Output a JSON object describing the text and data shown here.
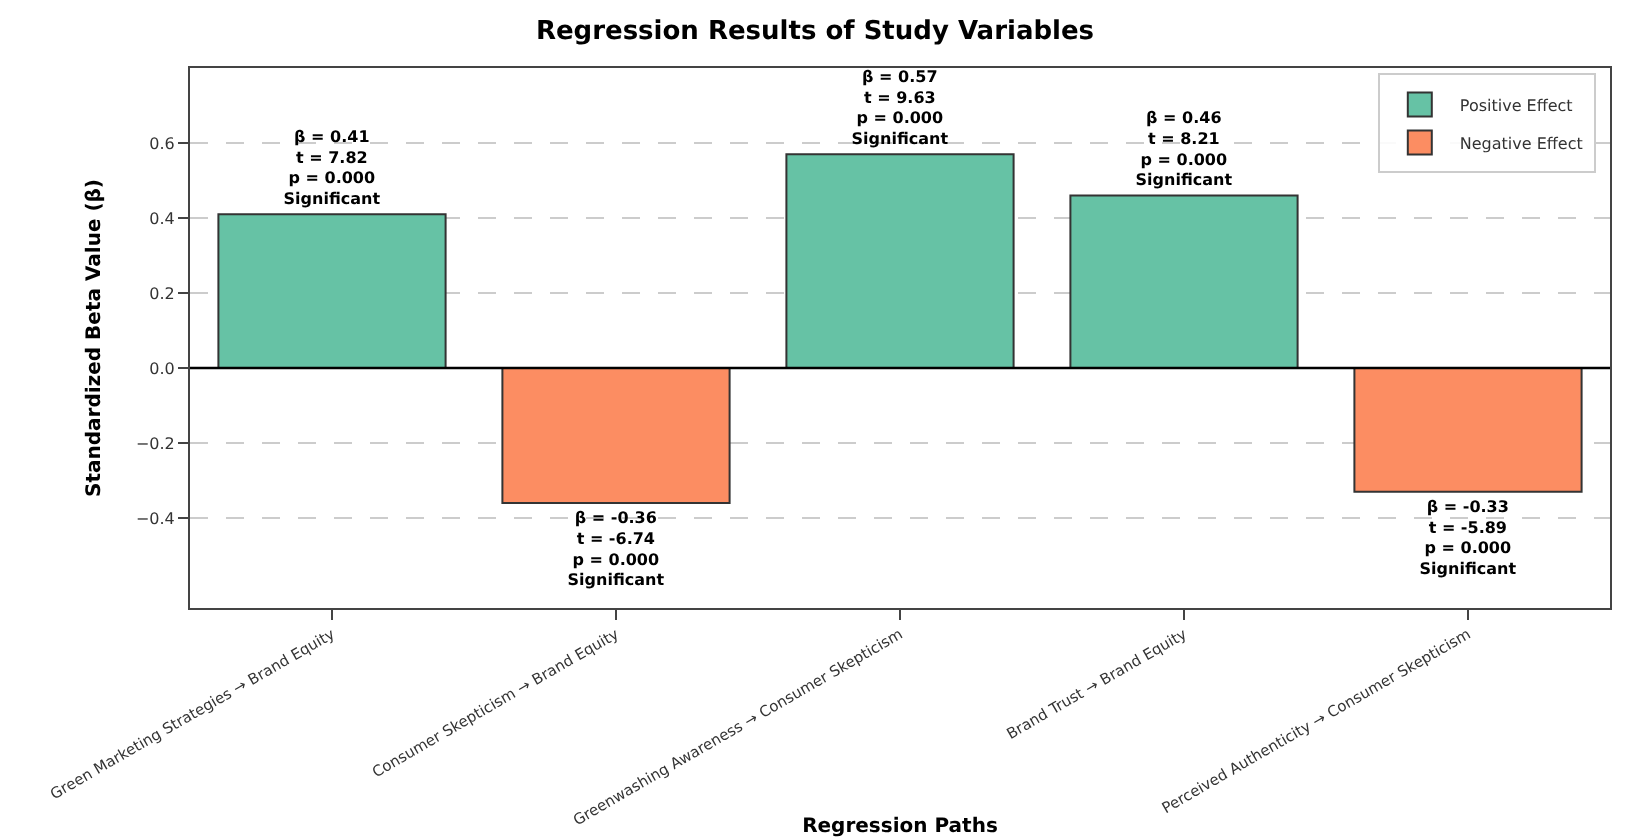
{
  "chart_data": {
    "type": "bar",
    "title": "Regression Results of Study Variables",
    "xlabel": "Regression Paths",
    "ylabel": "Standardized Beta Value (β)",
    "categories": [
      "Green Marketing Strategies → Brand Equity",
      "Consumer Skepticism → Brand Equity",
      "Greenwashing Awareness → Consumer Skepticism",
      "Brand Trust → Brand Equity",
      "Perceived Authenticity → Consumer Skepticism"
    ],
    "series": [
      {
        "name": "Positive Effect",
        "color": "#66c2a5",
        "values": [
          0.41,
          null,
          0.57,
          0.46,
          null
        ],
        "value_labels": [
          "β = 0.41\nt = 7.82\np = 0.000\nSignificant",
          null,
          "β = 0.57\nt = 9.63\np = 0.000\nSignificant",
          "β = 0.46\nt = 8.21\np = 0.000\nSignificant",
          null
        ]
      },
      {
        "name": "Negative Effect",
        "color": "#fc8d62",
        "values": [
          null,
          -0.36,
          null,
          null,
          -0.33
        ],
        "value_labels": [
          null,
          "β = -0.36\nt = -6.74\np = 0.000\nSignificant",
          null,
          null,
          "β = -0.33\nt = -5.89\np = 0.000\nSignificant"
        ]
      }
    ],
    "ylim": [
      -0.64,
      0.8
    ],
    "yticks": [
      {
        "value": -0.4,
        "label": "−0.4"
      },
      {
        "value": -0.2,
        "label": "−0.2"
      },
      {
        "value": 0,
        "label": "0.0"
      },
      {
        "value": 0.2,
        "label": "0.2"
      },
      {
        "value": 0.4,
        "label": "0.4"
      },
      {
        "value": 0.6,
        "label": "0.6"
      }
    ],
    "grid": "y",
    "legend": "top right",
    "ref_lines": [
      {
        "axis": "y",
        "value": 0,
        "color": "#000000"
      }
    ]
  }
}
